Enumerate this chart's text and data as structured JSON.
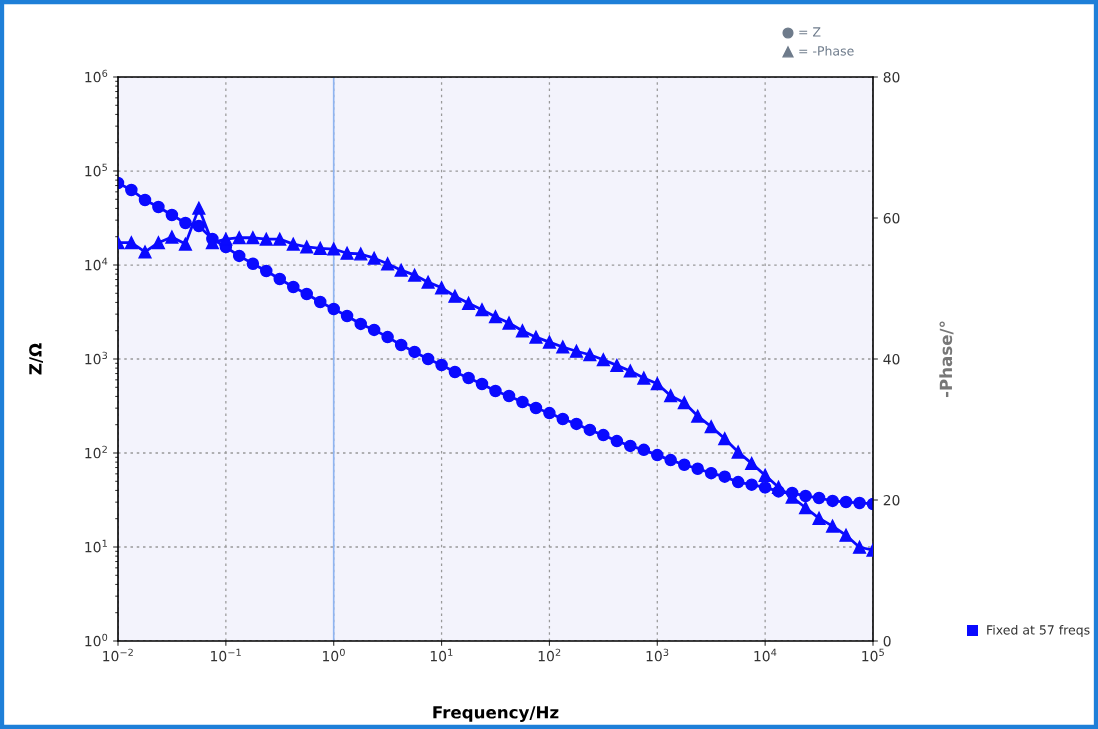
{
  "chart_data": {
    "type": "line",
    "xlabel": "Frequency/Hz",
    "ylabel": "Z/Ω",
    "y2label": "-Phase/°",
    "x": [
      0.01,
      0.0133,
      0.0178,
      0.0237,
      0.0316,
      0.0422,
      0.0562,
      0.075,
      0.1,
      0.133,
      0.178,
      0.237,
      0.316,
      0.422,
      0.562,
      0.75,
      1,
      1.33,
      1.78,
      2.37,
      3.16,
      4.22,
      5.62,
      7.5,
      10,
      13.3,
      17.8,
      23.7,
      31.6,
      42.2,
      56.2,
      75,
      100,
      133,
      178,
      237,
      316,
      422,
      562,
      750,
      1000,
      1330,
      1780,
      2370,
      3160,
      4220,
      5620,
      7500,
      10000,
      13300,
      17800,
      23700,
      31600,
      42200,
      56200,
      75000,
      100000
    ],
    "series": [
      {
        "color": "#0a0aff",
        "marker": "circle",
        "values": [
          74500,
          62800,
          49100,
          41400,
          34000,
          28000,
          26000,
          18900,
          15500,
          12500,
          10300,
          8630,
          7100,
          5830,
          4910,
          4040,
          3400,
          2870,
          2360,
          2040,
          1710,
          1410,
          1190,
          1000,
          863,
          727,
          628,
          542,
          457,
          404,
          349,
          301,
          266,
          230,
          204,
          176,
          155,
          134,
          119,
          108,
          95,
          84,
          75,
          68,
          61,
          56,
          49,
          46,
          43,
          39,
          37.5,
          34.9,
          33.2,
          30.9,
          30.1,
          29.4,
          28.7
        ]
      },
      {
        "color": "#0a0aff",
        "marker": "triangle",
        "axis": "y2",
        "values": [
          56.5,
          56.5,
          55.2,
          56.5,
          57.3,
          56.3,
          61.4,
          56.5,
          57.0,
          57.2,
          57.2,
          57.0,
          57.0,
          56.3,
          55.9,
          55.7,
          55.6,
          55.0,
          54.9,
          54.3,
          53.5,
          52.6,
          51.9,
          50.9,
          50.1,
          48.9,
          47.9,
          47.0,
          46.0,
          45.1,
          44.0,
          43.1,
          42.4,
          41.7,
          41.1,
          40.6,
          39.9,
          39.1,
          38.3,
          37.3,
          36.5,
          34.8,
          33.8,
          31.9,
          30.4,
          28.7,
          26.8,
          25.2,
          23.5,
          21.8,
          20.4,
          18.9,
          17.4,
          16.3,
          15.0,
          13.3,
          12.9
        ]
      }
    ],
    "log": "xy",
    "xlim": [
      0.01,
      100000
    ],
    "xticks": [
      {
        "value": 0.01,
        "label": "10$^{−2}$"
      },
      {
        "value": 0.1,
        "label": "10$^{−1}$"
      },
      {
        "value": 1,
        "label": "10$^{0}$"
      },
      {
        "value": 10,
        "label": "10$^{1}$"
      },
      {
        "value": 100,
        "label": "10$^{2}$"
      },
      {
        "value": 1000,
        "label": "10$^{3}$"
      },
      {
        "value": 10000,
        "label": "10$^{4}$"
      },
      {
        "value": 100000,
        "label": "10$^{5}$"
      }
    ],
    "ylim": [
      1,
      1000000
    ],
    "yticks": [
      {
        "value": 1,
        "label": "10$^{0}$"
      },
      {
        "value": 10,
        "label": "10$^{1}$"
      },
      {
        "value": 100,
        "label": "10$^{2}$"
      },
      {
        "value": 1000,
        "label": "10$^{3}$"
      },
      {
        "value": 10000,
        "label": "10$^{4}$"
      },
      {
        "value": 100000,
        "label": "10$^{5}$"
      },
      {
        "value": 1000000,
        "label": "10$^{6}$"
      }
    ],
    "y2lim": [
      0,
      80
    ],
    "y2ticks": [
      0,
      20,
      40,
      60,
      80
    ],
    "ref_lines": [
      {
        "axis": "x",
        "value": 1,
        "color": "#8fb4f0"
      }
    ],
    "grid": true,
    "line_style": "solid",
    "annotations": [
      "= Z",
      "= -Phase",
      "Fixed at 57 freqs"
    ]
  }
}
